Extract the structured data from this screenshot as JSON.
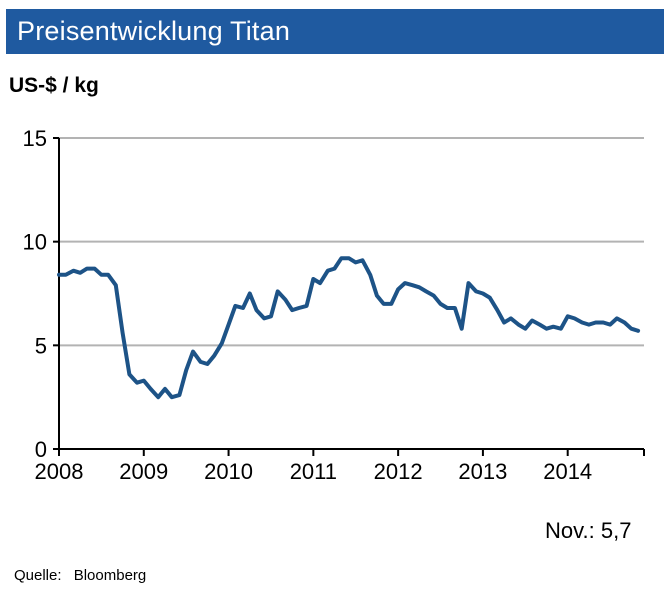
{
  "header": {
    "title": "Preisentwicklung Titan"
  },
  "unit_label": "US-$ / kg",
  "annotation": {
    "label": "Nov.:",
    "value": "5,7"
  },
  "source": {
    "label": "Quelle:",
    "value": "Bloomberg"
  },
  "colors": {
    "title_bg": "#1f5aa0",
    "line": "#1d5387",
    "grid": "#b3b3b3",
    "axis": "#000000"
  },
  "chart_data": {
    "type": "line",
    "title": "Preisentwicklung Titan",
    "ylabel": "US-$ / kg",
    "xlabel": "",
    "xlim": [
      2008,
      2014.9
    ],
    "ylim": [
      0,
      15
    ],
    "yticks": [
      0,
      5,
      10,
      15
    ],
    "xticks": [
      2008,
      2009,
      2010,
      2011,
      2012,
      2013,
      2014
    ],
    "grid": "horizontal",
    "legend": "none",
    "series": [
      {
        "x": [
          2008.0,
          2008.08,
          2008.17,
          2008.25,
          2008.33,
          2008.42,
          2008.5,
          2008.58,
          2008.67,
          2008.75,
          2008.83,
          2008.92,
          2009.0,
          2009.08,
          2009.17,
          2009.25,
          2009.33,
          2009.42,
          2009.5,
          2009.58,
          2009.67,
          2009.75,
          2009.83,
          2009.92,
          2010.0,
          2010.08,
          2010.17,
          2010.25,
          2010.33,
          2010.42,
          2010.5,
          2010.58,
          2010.67,
          2010.75,
          2010.83,
          2010.92,
          2011.0,
          2011.08,
          2011.17,
          2011.25,
          2011.33,
          2011.42,
          2011.5,
          2011.58,
          2011.67,
          2011.75,
          2011.83,
          2011.92,
          2012.0,
          2012.08,
          2012.17,
          2012.25,
          2012.33,
          2012.42,
          2012.5,
          2012.58,
          2012.67,
          2012.75,
          2012.83,
          2012.92,
          2013.0,
          2013.08,
          2013.17,
          2013.25,
          2013.33,
          2013.42,
          2013.5,
          2013.58,
          2013.67,
          2013.75,
          2013.83,
          2013.92,
          2014.0,
          2014.08,
          2014.17,
          2014.25,
          2014.33,
          2014.42,
          2014.5,
          2014.58,
          2014.67,
          2014.75,
          2014.83
        ],
        "y": [
          8.4,
          8.4,
          8.6,
          8.5,
          8.7,
          8.7,
          8.4,
          8.4,
          7.9,
          5.6,
          3.6,
          3.2,
          3.3,
          2.9,
          2.5,
          2.9,
          2.5,
          2.6,
          3.8,
          4.7,
          4.2,
          4.1,
          4.5,
          5.1,
          6.0,
          6.9,
          6.8,
          7.5,
          6.7,
          6.3,
          6.4,
          7.6,
          7.2,
          6.7,
          6.8,
          6.9,
          8.2,
          8.0,
          8.6,
          8.7,
          9.2,
          9.2,
          9.0,
          9.1,
          8.4,
          7.4,
          7.0,
          7.0,
          7.7,
          8.0,
          7.9,
          7.8,
          7.6,
          7.4,
          7.0,
          6.8,
          6.8,
          5.8,
          8.0,
          7.6,
          7.5,
          7.3,
          6.7,
          6.1,
          6.3,
          6.0,
          5.8,
          6.2,
          6.0,
          5.8,
          5.9,
          5.8,
          6.4,
          6.3,
          6.1,
          6.0,
          6.1,
          6.1,
          6.0,
          6.3,
          6.1,
          5.8,
          5.7
        ]
      }
    ]
  }
}
